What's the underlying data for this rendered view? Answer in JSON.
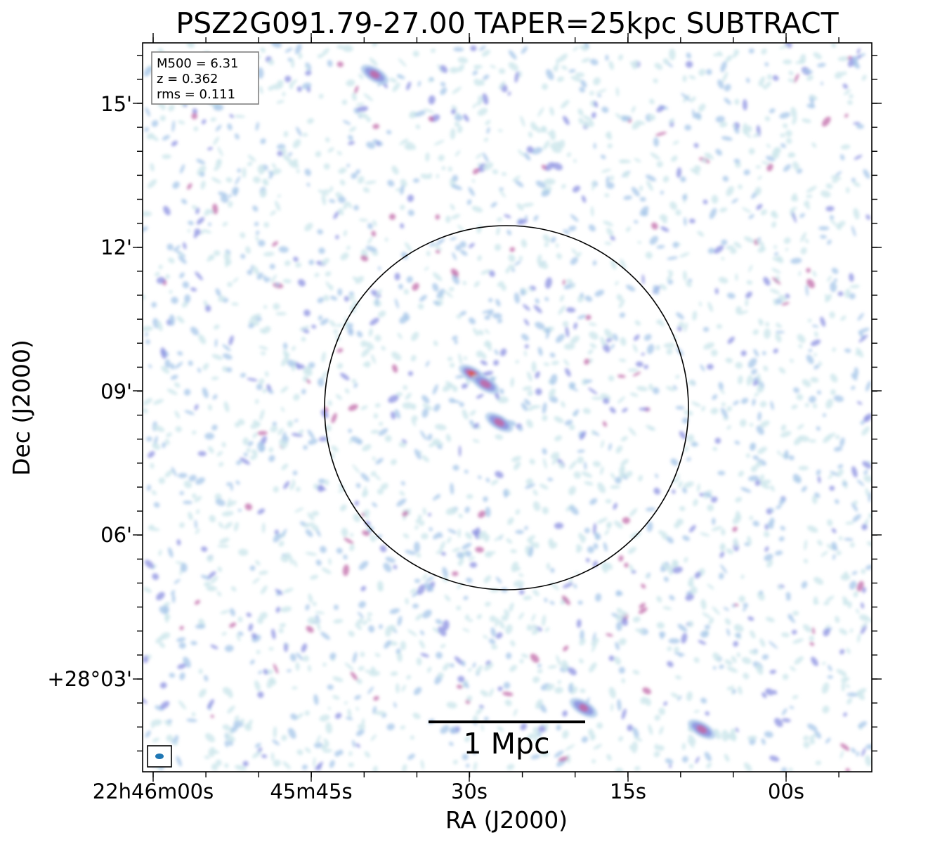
{
  "title": "PSZ2G091.79-27.00 TAPER=25kpc SUBTRACT",
  "x_axis": {
    "label": "RA (J2000)",
    "ticks": [
      "22h46m00s",
      "45m45s",
      "30s",
      "15s",
      "00s"
    ]
  },
  "y_axis": {
    "label": "Dec (J2000)",
    "ticks": [
      "15'",
      "12'",
      "09'",
      "06'",
      "+28°03'"
    ]
  },
  "info_box": {
    "lines": [
      "M500 = 6.31",
      "z = 0.362",
      "rms = 0.111"
    ]
  },
  "scale_bar": {
    "label": "1 Mpc"
  },
  "image": {
    "type": "radio continuum map",
    "colormap": [
      "#cfe8ec",
      "#a9c8ea",
      "#8a8fe0",
      "#c06aa8",
      "#d8564a"
    ],
    "circle_color": "#000000",
    "beam_color": "#1f77b4"
  },
  "emission": {
    "bright_peaks": [
      {
        "ra_s": 29.7,
        "dec_min": 9.35,
        "strength": 1.0
      },
      {
        "ra_s": 28.5,
        "dec_min": 9.15,
        "strength": 0.65
      },
      {
        "ra_s": 27.2,
        "dec_min": 8.35,
        "strength": 0.6
      },
      {
        "ra_s": 39.0,
        "dec_min": 15.6,
        "strength": 0.55
      },
      {
        "ra_s": 8.0,
        "dec_min": 1.95,
        "strength": 0.6
      },
      {
        "ra_s": 19.2,
        "dec_min": 2.4,
        "strength": 0.5
      }
    ]
  }
}
